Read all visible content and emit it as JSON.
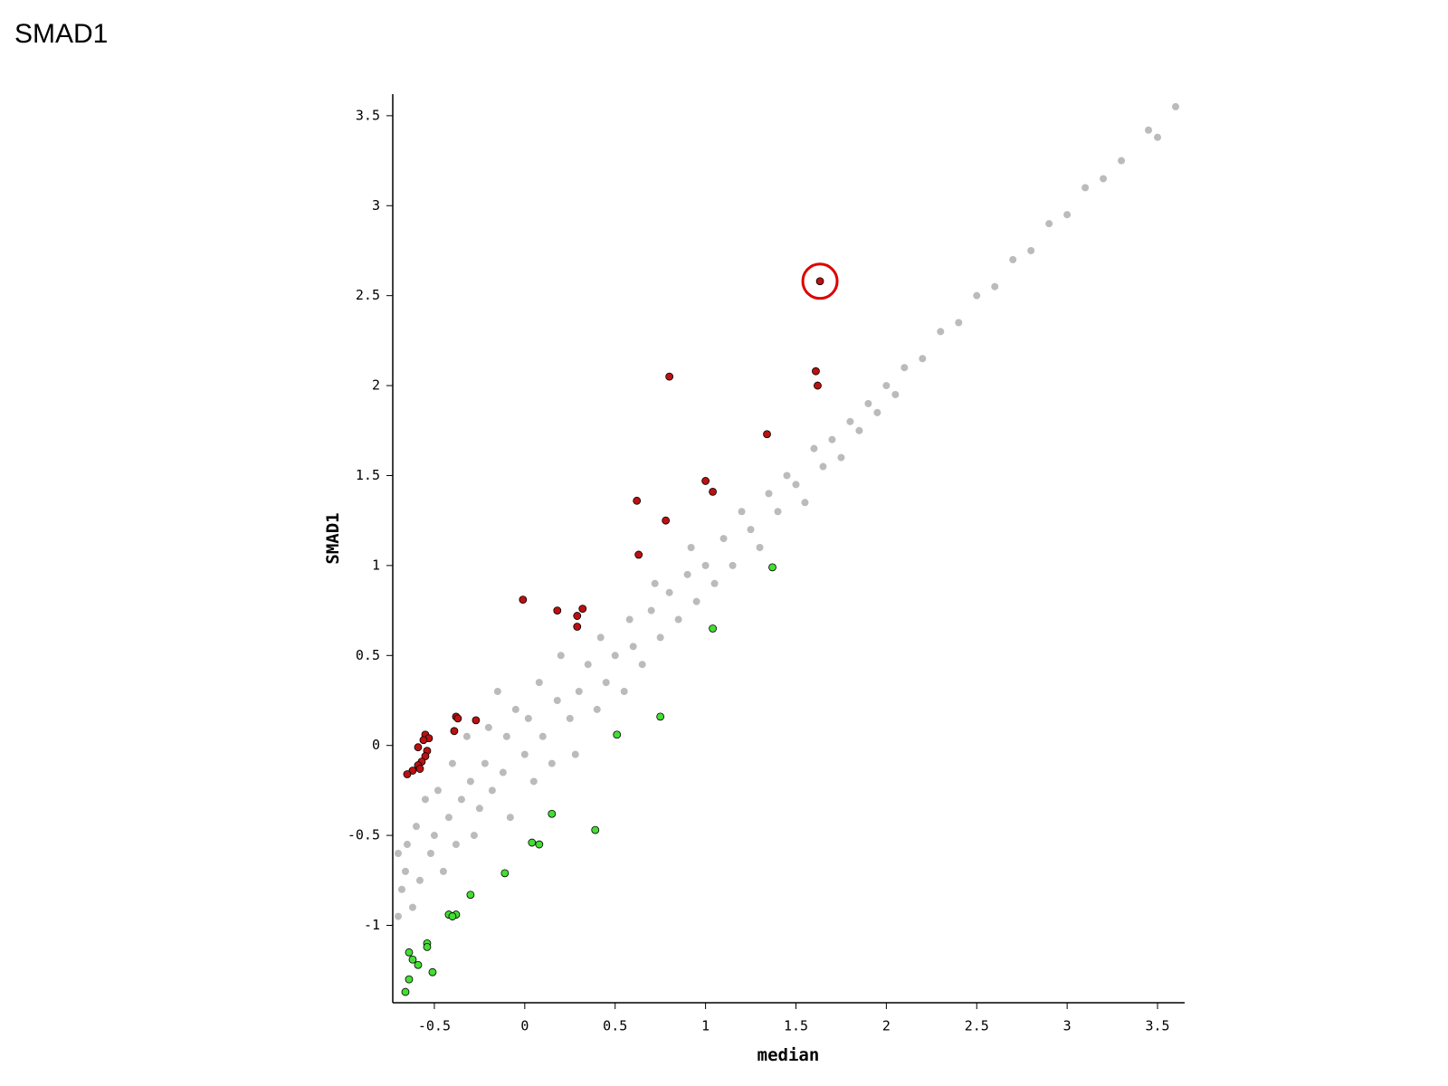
{
  "chart_data": {
    "type": "scatter",
    "title": "SMAD1",
    "x_label": "median",
    "y_label": "SMAD1",
    "xlim": [
      -0.73,
      3.65
    ],
    "ylim": [
      -1.43,
      3.62
    ],
    "xticks": [
      -0.5,
      0,
      0.5,
      1,
      1.5,
      2,
      2.5,
      3,
      3.5
    ],
    "yticks": [
      -1,
      -0.5,
      0,
      0.5,
      1,
      1.5,
      2,
      2.5,
      3,
      3.5
    ],
    "highlight_color": "#dd0000",
    "series": [
      {
        "color": "#bbbbbb",
        "x": [
          -0.7,
          -0.7,
          -0.68,
          -0.66,
          -0.65,
          -0.62,
          -0.6,
          -0.58,
          -0.55,
          -0.52,
          -0.5,
          -0.48,
          -0.45,
          -0.42,
          -0.4,
          -0.38,
          -0.35,
          -0.32,
          -0.3,
          -0.28,
          -0.25,
          -0.22,
          -0.2,
          -0.18,
          -0.15,
          -0.12,
          -0.1,
          -0.08,
          -0.05,
          0,
          0.02,
          0.05,
          0.08,
          0.1,
          0.15,
          0.18,
          0.2,
          0.25,
          0.28,
          0.3,
          0.35,
          0.4,
          0.42,
          0.45,
          0.5,
          0.55,
          0.58,
          0.6,
          0.65,
          0.7,
          0.72,
          0.75,
          0.8,
          0.85,
          0.9,
          0.92,
          0.95,
          1.0,
          1.05,
          1.1,
          1.15,
          1.2,
          1.25,
          1.3,
          1.35,
          1.4,
          1.45,
          1.5,
          1.55,
          1.6,
          1.65,
          1.7,
          1.75,
          1.8,
          1.85,
          1.9,
          1.95,
          2.0,
          2.05,
          2.1,
          2.2,
          2.3,
          2.4,
          2.5,
          2.6,
          2.7,
          2.8,
          2.9,
          3.0,
          3.1,
          3.2,
          3.3,
          3.45,
          3.5,
          3.6
        ],
        "values": [
          -0.95,
          -0.6,
          -0.8,
          -0.7,
          -0.55,
          -0.9,
          -0.45,
          -0.75,
          -0.3,
          -0.6,
          -0.5,
          -0.25,
          -0.7,
          -0.4,
          -0.1,
          -0.55,
          -0.3,
          0.05,
          -0.2,
          -0.5,
          -0.35,
          -0.1,
          0.1,
          -0.25,
          0.3,
          -0.15,
          0.05,
          -0.4,
          0.2,
          -0.05,
          0.15,
          -0.2,
          0.35,
          0.05,
          -0.1,
          0.25,
          0.5,
          0.15,
          -0.05,
          0.3,
          0.45,
          0.2,
          0.6,
          0.35,
          0.5,
          0.3,
          0.7,
          0.55,
          0.45,
          0.75,
          0.9,
          0.6,
          0.85,
          0.7,
          0.95,
          1.1,
          0.8,
          1.0,
          0.9,
          1.15,
          1.0,
          1.3,
          1.2,
          1.1,
          1.4,
          1.3,
          1.5,
          1.45,
          1.35,
          1.65,
          1.55,
          1.7,
          1.6,
          1.8,
          1.75,
          1.9,
          1.85,
          2.0,
          1.95,
          2.1,
          2.15,
          2.3,
          2.35,
          2.5,
          2.55,
          2.7,
          2.75,
          2.9,
          2.95,
          3.1,
          3.15,
          3.25,
          3.42,
          3.38,
          3.55
        ]
      },
      {
        "color": "#bb1111",
        "highlight_index": 0,
        "x": [
          1.633,
          1.61,
          1.62,
          0.8,
          1.34,
          1.0,
          1.04,
          0.62,
          0.78,
          0.63,
          -0.01,
          0.18,
          0.29,
          0.32,
          0.29,
          -0.38,
          -0.37,
          -0.27,
          -0.39,
          -0.55,
          -0.53,
          -0.56,
          -0.59,
          -0.54,
          -0.55,
          -0.57,
          -0.59,
          -0.62,
          -0.65,
          -0.58
        ],
        "values": [
          2.58,
          2.08,
          2.0,
          2.05,
          1.73,
          1.47,
          1.41,
          1.36,
          1.25,
          1.06,
          0.81,
          0.75,
          0.72,
          0.76,
          0.66,
          0.16,
          0.15,
          0.14,
          0.08,
          0.06,
          0.04,
          0.03,
          -0.01,
          -0.03,
          -0.06,
          -0.09,
          -0.11,
          -0.14,
          -0.16,
          -0.13
        ]
      },
      {
        "color": "#44dd33",
        "x": [
          1.37,
          1.04,
          0.75,
          0.51,
          0.15,
          0.39,
          0.04,
          0.08,
          -0.11,
          -0.3,
          -0.42,
          -0.38,
          -0.4,
          -0.54,
          -0.54,
          -0.64,
          -0.62,
          -0.59,
          -0.51,
          -0.64,
          -0.66
        ],
        "values": [
          0.99,
          0.65,
          0.16,
          0.06,
          -0.38,
          -0.47,
          -0.54,
          -0.55,
          -0.71,
          -0.83,
          -0.94,
          -0.94,
          -0.95,
          -1.1,
          -1.12,
          -1.15,
          -1.19,
          -1.22,
          -1.26,
          -1.3,
          -1.37
        ]
      }
    ]
  }
}
